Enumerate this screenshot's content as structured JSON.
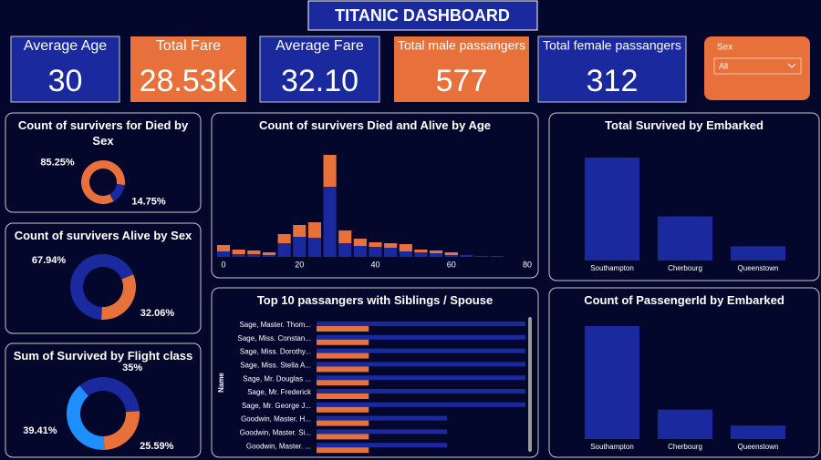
{
  "header": {
    "title": "TITANIC DASHBOARD"
  },
  "kpis": [
    {
      "label": "Average Age",
      "value": "30"
    },
    {
      "label": "Total Fare",
      "value": "28.53K"
    },
    {
      "label": "Average Fare",
      "value": "32.10"
    },
    {
      "label": "Total male passangers",
      "value": "577"
    },
    {
      "label": "Total female passangers",
      "value": "312"
    }
  ],
  "slicer": {
    "label": "Sex",
    "value": "All"
  },
  "chart_data": [
    {
      "type": "donut",
      "title": "Count of survivers for Died by Sex",
      "values": [
        85.25,
        14.75
      ],
      "value_labels": [
        "85.25%",
        "14.75%"
      ],
      "colors": [
        "#e8703a",
        "#1a2a9e"
      ]
    },
    {
      "type": "donut",
      "title": "Count of survivers Alive by Sex",
      "values": [
        67.94,
        32.06
      ],
      "value_labels": [
        "67.94%",
        "32.06%"
      ],
      "colors": [
        "#1a2a9e",
        "#e8703a"
      ]
    },
    {
      "type": "donut",
      "title": "Sum of Survived by Flight class",
      "values": [
        35,
        25.59,
        39.41
      ],
      "value_labels": [
        "35%",
        "25.59%",
        "39.41%"
      ],
      "colors": [
        "#1a2a9e",
        "#e8703a",
        "#1f8fff"
      ]
    },
    {
      "type": "stacked_bar",
      "title": "Count of survivers Died and Alive by Age",
      "x": [
        0,
        4,
        8,
        12,
        16,
        20,
        24,
        28,
        32,
        36,
        40,
        44,
        48,
        52,
        56,
        60,
        64,
        68,
        72
      ],
      "series": [
        {
          "color": "#1a2a9e",
          "values": [
            12,
            6,
            6,
            4,
            30,
            44,
            42,
            154,
            30,
            24,
            22,
            20,
            12,
            10,
            8,
            4,
            4,
            2,
            2
          ]
        },
        {
          "color": "#e8703a",
          "values": [
            14,
            10,
            8,
            6,
            20,
            26,
            34,
            70,
            28,
            16,
            10,
            10,
            16,
            6,
            6,
            6,
            0,
            0,
            0
          ]
        }
      ],
      "xlim": [
        -2,
        82
      ],
      "xticks": [
        0,
        20,
        40,
        60,
        80
      ]
    },
    {
      "type": "hbar",
      "title": "Top 10 passangers with Siblings / Spouse",
      "y_label": "Name",
      "categories": [
        "Sage, Master. Thom...",
        "Sage, Miss. Constan...",
        "Sage, Miss. Dorothy...",
        "Sage, Miss. Stella A...",
        "Sage, Mr. Douglas ...",
        "Sage, Mr. Frederick",
        "Sage, Mr. George J...",
        "Goodwin, Master. H...",
        "Goodwin, Master. Si...",
        "Goodwin, Master. ..."
      ],
      "series": [
        {
          "color": "#1a2a9e",
          "values": [
            8,
            8,
            8,
            8,
            8,
            8,
            8,
            5,
            5,
            5
          ]
        },
        {
          "color": "#e8703a",
          "values": [
            2,
            2,
            2,
            2,
            2,
            2,
            2,
            2,
            2,
            2
          ]
        }
      ]
    },
    {
      "type": "bar",
      "title": "Total Survived by Embarked",
      "categories": [
        "Southampton",
        "Cherbourg",
        "Queenstown"
      ],
      "values": [
        217,
        93,
        30
      ],
      "color": "#1a2a9e"
    },
    {
      "type": "bar",
      "title": "Count of PassengerId by Embarked",
      "categories": [
        "Southampton",
        "Cherbourg",
        "Queenstown"
      ],
      "values": [
        644,
        168,
        77
      ],
      "color": "#1a2a9e"
    }
  ]
}
